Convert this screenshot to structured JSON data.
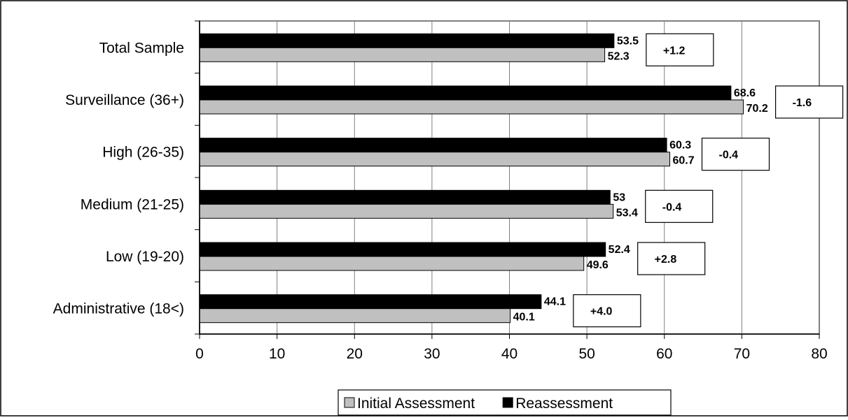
{
  "chart_data": {
    "type": "bar",
    "orientation": "horizontal",
    "categories": [
      "Total Sample",
      "Surveillance (36+)",
      "High (26-35)",
      "Medium (21-25)",
      "Low (19-20)",
      "Administrative (18<)"
    ],
    "series": [
      {
        "name": "Reassessment",
        "values": [
          53.5,
          68.6,
          60.3,
          53,
          52.4,
          44.1
        ],
        "color": "#000000"
      },
      {
        "name": "Initial Assessment",
        "values": [
          52.3,
          70.2,
          60.7,
          53.4,
          49.6,
          40.1
        ],
        "color": "#c0c0c0"
      }
    ],
    "value_labels": {
      "Reassessment": [
        "53.5",
        "68.6",
        "60.3",
        "53",
        "52.4",
        "44.1"
      ],
      "Initial Assessment": [
        "52.3",
        "70.2",
        "60.7",
        "53.4",
        "49.6",
        "40.1"
      ]
    },
    "differences": [
      "+1.2",
      "-1.6",
      "-0.4",
      "-0.4",
      "+2.8",
      "+4.0"
    ],
    "xlim": [
      0,
      80
    ],
    "xticks": [
      "0",
      "10",
      "20",
      "30",
      "40",
      "50",
      "60",
      "70",
      "80"
    ],
    "grid": "vertical",
    "legend_position": "bottom",
    "legend": [
      "Initial Assessment",
      "Reassessment"
    ]
  }
}
